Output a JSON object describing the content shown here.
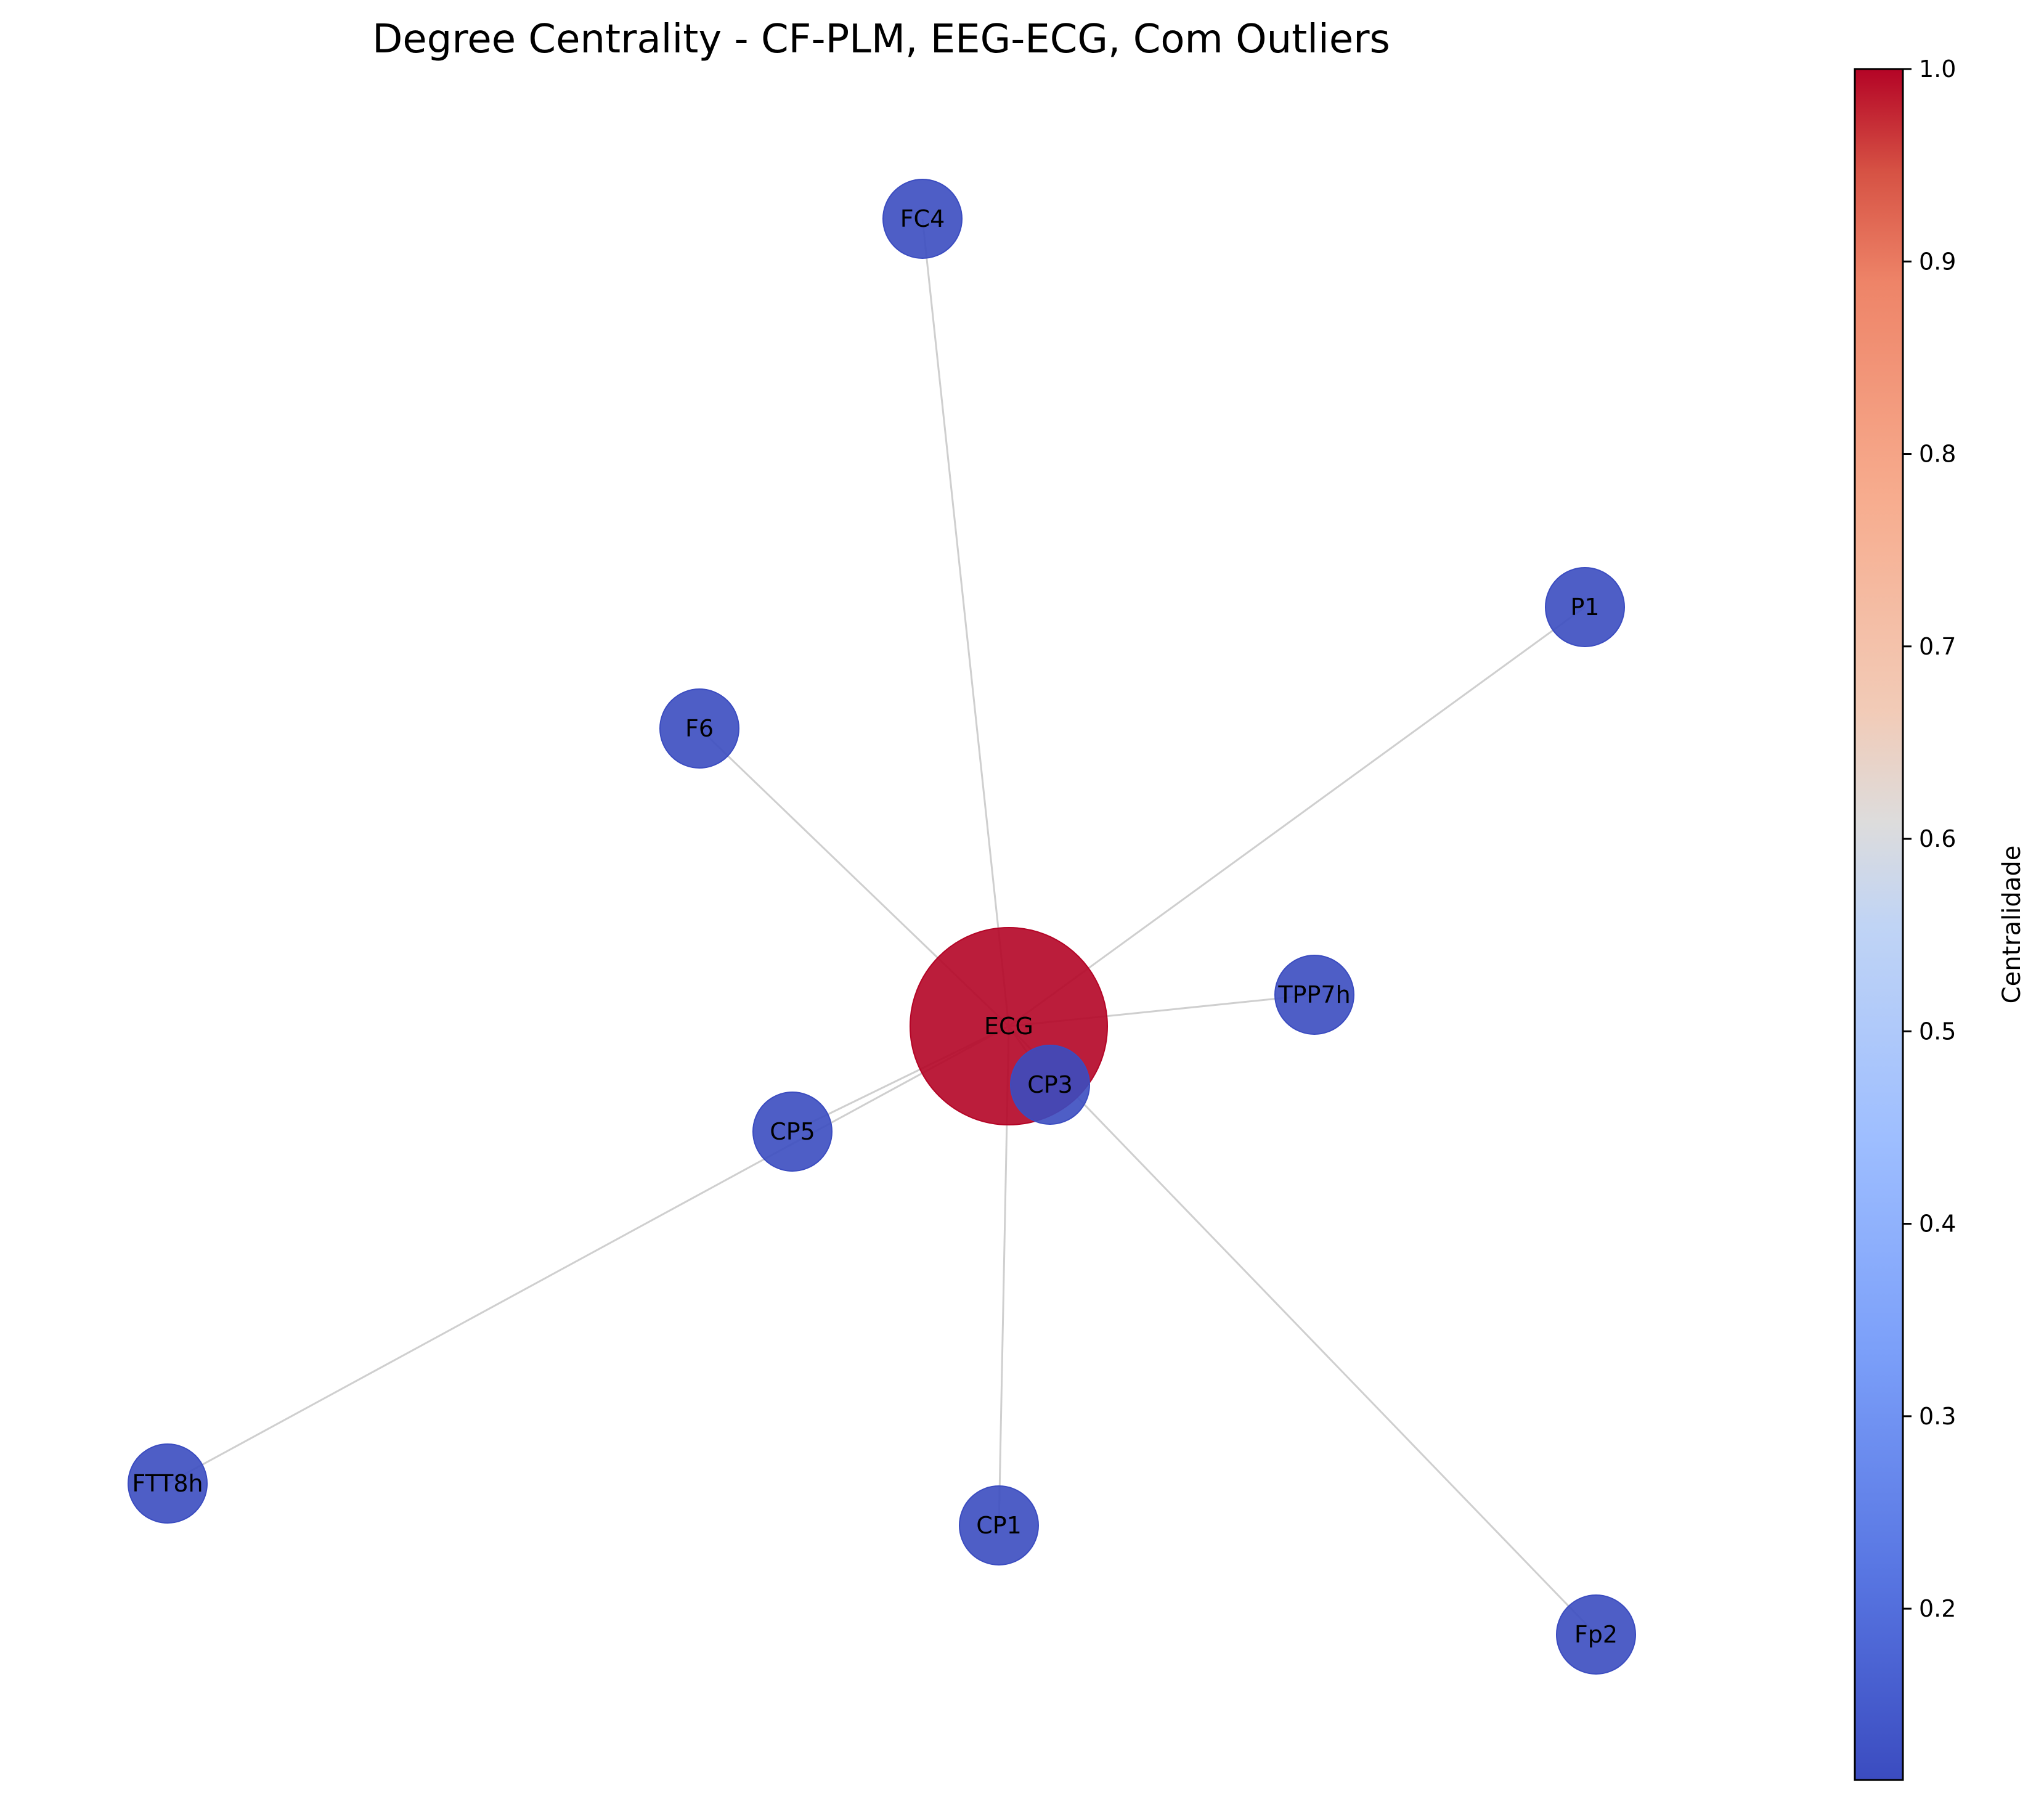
{
  "chart_data": {
    "type": "network",
    "title": "Degree Centrality - CF-PLM, EEG-ECG, Com Outliers",
    "colorbar": {
      "label": "Centralidade",
      "range": [
        0.111,
        1.0
      ],
      "colormap": "coolwarm",
      "ticks": [
        {
          "value": 0.2,
          "label": "0.2"
        },
        {
          "value": 0.3,
          "label": "0.3"
        },
        {
          "value": 0.4,
          "label": "0.4"
        },
        {
          "value": 0.5,
          "label": "0.5"
        },
        {
          "value": 0.6,
          "label": "0.6"
        },
        {
          "value": 0.7,
          "label": "0.7"
        },
        {
          "value": 0.8,
          "label": "0.8"
        },
        {
          "value": 0.9,
          "label": "0.9"
        },
        {
          "value": 1.0,
          "label": "1.0"
        }
      ]
    },
    "nodes": [
      {
        "id": "ECG",
        "label": "ECG",
        "centrality": 1.0
      },
      {
        "id": "FC4",
        "label": "FC4",
        "centrality": 0.111
      },
      {
        "id": "P1",
        "label": "P1",
        "centrality": 0.111
      },
      {
        "id": "F6",
        "label": "F6",
        "centrality": 0.111
      },
      {
        "id": "TPP7h",
        "label": "TPP7h",
        "centrality": 0.111
      },
      {
        "id": "CP3",
        "label": "CP3",
        "centrality": 0.111
      },
      {
        "id": "CP5",
        "label": "CP5",
        "centrality": 0.111
      },
      {
        "id": "FTT8h",
        "label": "FTT8h",
        "centrality": 0.111
      },
      {
        "id": "CP1",
        "label": "CP1",
        "centrality": 0.111
      },
      {
        "id": "Fp2",
        "label": "Fp2",
        "centrality": 0.111
      }
    ],
    "edges": [
      [
        "ECG",
        "FC4"
      ],
      [
        "ECG",
        "P1"
      ],
      [
        "ECG",
        "F6"
      ],
      [
        "ECG",
        "TPP7h"
      ],
      [
        "ECG",
        "CP3"
      ],
      [
        "ECG",
        "CP5"
      ],
      [
        "ECG",
        "FTT8h"
      ],
      [
        "ECG",
        "CP1"
      ],
      [
        "ECG",
        "Fp2"
      ]
    ],
    "colors": {
      "high": "#b40426",
      "low": "#3b4cc0",
      "edge": "#cfcfcf"
    }
  }
}
